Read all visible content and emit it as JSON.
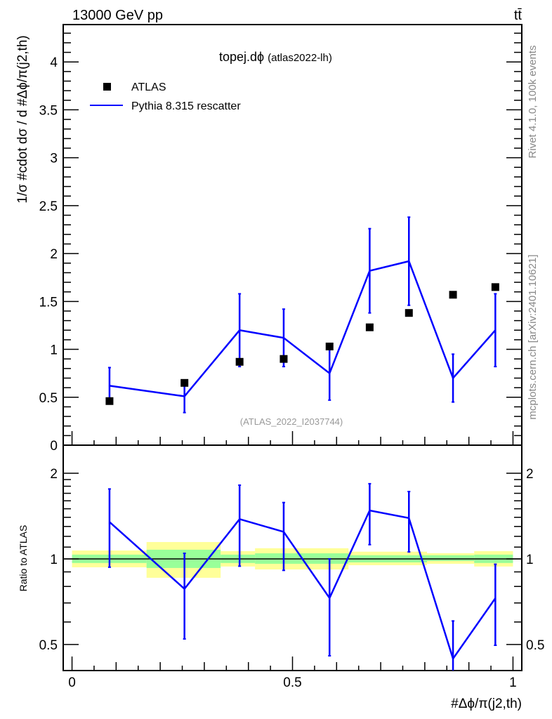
{
  "header": {
    "energy_label": "13000 GeV pp",
    "process_label": "tt̄",
    "title_main": "topej.dϕ",
    "title_sub": "(atlas2022-lh)",
    "side_label_top": "Rivet 4.1.0,  100k events",
    "side_label_bottom": "mcplots.cern.ch [arXiv:2401.10621]",
    "analysis_label": "(ATLAS_2022_I2037744)"
  },
  "chart_data": [
    {
      "type": "scatter",
      "title": "topej.dϕ (atlas2022-lh)",
      "ylabel": "1/σ #cdot dσ / d #Δϕ/π(j2,th)",
      "xlim": [
        -0.02,
        1.02
      ],
      "ylim": [
        0,
        4.39
      ],
      "yticks": [
        "0",
        "0.5",
        "1",
        "1.5",
        "2",
        "2.5",
        "3",
        "3.5",
        "4"
      ],
      "legend_position": "top-left",
      "legend": [
        "ATLAS",
        "Pythia 8.315 rescatter"
      ],
      "x": [
        0.085,
        0.255,
        0.38,
        0.48,
        0.584,
        0.675,
        0.764,
        0.864,
        0.96
      ],
      "series": [
        {
          "name": "ATLAS",
          "color": "#000000",
          "marker": "square",
          "values": [
            0.46,
            0.65,
            0.87,
            0.9,
            1.03,
            1.23,
            1.38,
            1.57,
            1.65
          ]
        },
        {
          "name": "Pythia 8.315 rescatter",
          "color": "#0000ff",
          "marker": "line",
          "values": [
            0.62,
            0.51,
            1.2,
            1.12,
            0.75,
            1.82,
            1.92,
            0.7,
            1.2
          ],
          "errors": [
            0.19,
            0.17,
            0.38,
            0.3,
            0.28,
            0.44,
            0.46,
            0.25,
            0.38
          ]
        }
      ]
    },
    {
      "type": "line",
      "ylabel": "Ratio to ATLAS",
      "xlabel": "#Δϕ/π(j2,th)",
      "yscale": "log",
      "ylim": [
        0.405,
        2.51
      ],
      "yticks": [
        "0.5",
        "1",
        "2"
      ],
      "xticks": [
        "0",
        "0.5",
        "1"
      ],
      "bands": [
        {
          "x0": 0,
          "x1": 0.169,
          "yellow": [
            0.934,
            1.07
          ],
          "green": [
            0.967,
            1.035
          ]
        },
        {
          "x0": 0.169,
          "x1": 0.337,
          "yellow": [
            0.858,
            1.146
          ],
          "green": [
            0.929,
            1.077
          ]
        },
        {
          "x0": 0.337,
          "x1": 0.415,
          "yellow": [
            0.94,
            1.065
          ],
          "green": [
            0.967,
            1.035
          ]
        },
        {
          "x0": 0.415,
          "x1": 0.627,
          "yellow": [
            0.918,
            1.09
          ],
          "green": [
            0.961,
            1.046
          ]
        },
        {
          "x0": 0.627,
          "x1": 0.805,
          "yellow": [
            0.95,
            1.06
          ],
          "green": [
            0.972,
            1.03
          ]
        },
        {
          "x0": 0.805,
          "x1": 0.912,
          "yellow": [
            0.961,
            1.047
          ],
          "green": [
            0.983,
            1.03
          ]
        },
        {
          "x0": 0.912,
          "x1": 1.0,
          "yellow": [
            0.94,
            1.065
          ],
          "green": [
            0.967,
            1.035
          ]
        }
      ],
      "band_colors": {
        "yellow": "#ffff99",
        "green": "#99ff99"
      }
    }
  ]
}
